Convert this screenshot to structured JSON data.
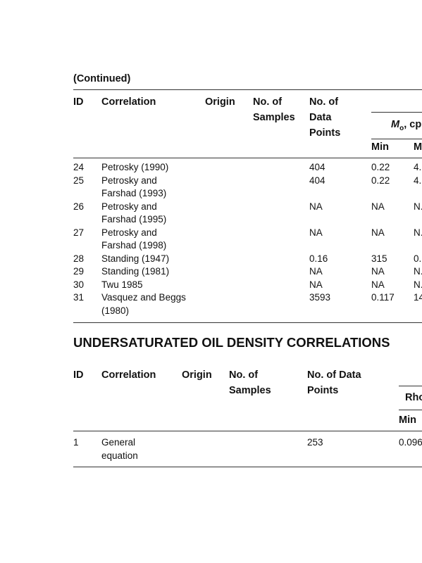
{
  "continued": "(Continued)",
  "table1": {
    "headers": {
      "id": "ID",
      "correlation": "Correlation",
      "origin": "Origin",
      "samples": [
        "No. of",
        "Samples"
      ],
      "points": [
        "No. of",
        "Data",
        "Points"
      ],
      "group": {
        "symbol": "M",
        "subscript": "o",
        "unit": ", cp"
      },
      "min": "Min",
      "max": "M"
    },
    "rows": [
      {
        "id": "24",
        "correlation": [
          "Petrosky (1990)"
        ],
        "points": "404",
        "min": "0.22",
        "max": "4."
      },
      {
        "id": "25",
        "correlation": [
          "Petrosky and",
          "Farshad (1993)"
        ],
        "points": "404",
        "min": "0.22",
        "max": "4."
      },
      {
        "id": "26",
        "correlation": [
          "Petrosky and",
          "Farshad (1995)"
        ],
        "points": "NA",
        "min": "NA",
        "max": "N."
      },
      {
        "id": "27",
        "correlation": [
          "Petrosky and",
          "Farshad (1998)"
        ],
        "points": "NA",
        "min": "NA",
        "max": "N."
      },
      {
        "id": "28",
        "correlation": [
          "Standing (1947)"
        ],
        "points": "0.16",
        "min": "315",
        "max": "0."
      },
      {
        "id": "29",
        "correlation": [
          "Standing (1981)"
        ],
        "points": "NA",
        "min": "NA",
        "max": "N."
      },
      {
        "id": "30",
        "correlation": [
          "Twu 1985"
        ],
        "points": "NA",
        "min": "NA",
        "max": "N."
      },
      {
        "id": "31",
        "correlation": [
          "Vasquez and Beggs",
          "(1980)"
        ],
        "points": "3593",
        "min": "0.117",
        "max": "14"
      }
    ]
  },
  "section_title": "UNDERSATURATED OIL DENSITY CORRELATIONS",
  "table2": {
    "headers": {
      "id": "ID",
      "correlation": "Correlation",
      "origin": "Origin",
      "samples": [
        "No. of",
        "Samples"
      ],
      "points": [
        "No. of Data",
        "Points"
      ],
      "group": "Rho",
      "min": "Min"
    },
    "rows": [
      {
        "id": "1",
        "correlation": [
          "General",
          "equation"
        ],
        "points": "253",
        "min": "0.096"
      }
    ]
  }
}
